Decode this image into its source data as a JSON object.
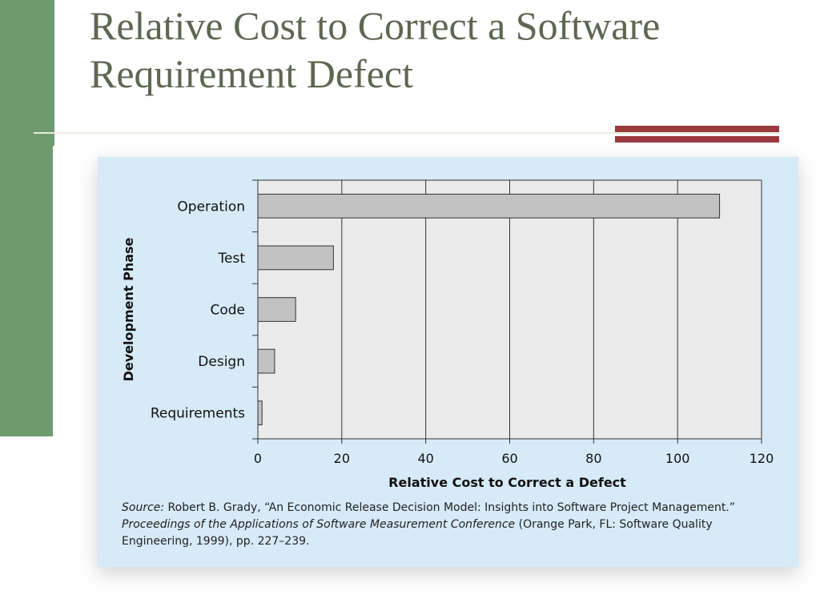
{
  "slide": {
    "title_line1": "Relative Cost to Correct a Software",
    "title_line2": "Requirement Defect"
  },
  "colors": {
    "sidebar_green": "#6f9a6f",
    "accent_red": "#9b3a3d",
    "panel_blue": "#d6eaf7",
    "plot_bg": "#ebebeb",
    "bar_fill": "#c2c2c2",
    "title_color": "#5f6652"
  },
  "chart_data": {
    "type": "bar",
    "orientation": "horizontal",
    "categories": [
      "Operation",
      "Test",
      "Code",
      "Design",
      "Requirements"
    ],
    "values": [
      110,
      18,
      9,
      4,
      1
    ],
    "xlabel": "Relative Cost to Correct a Defect",
    "ylabel": "Development Phase",
    "xlim": [
      0,
      120
    ],
    "xticks": [
      0,
      20,
      40,
      60,
      80,
      100,
      120
    ],
    "grid": "vertical"
  },
  "source": {
    "label": "Source:",
    "text1": " Robert B. Grady, “An Economic Release Decision Model: Insights into Software Project Management.”",
    "journal": "Proceedings of the Applications of Software Measurement Conference",
    "text2": " (Orange Park, FL: Software Quality Engineering, 1999), pp. 227–239."
  }
}
